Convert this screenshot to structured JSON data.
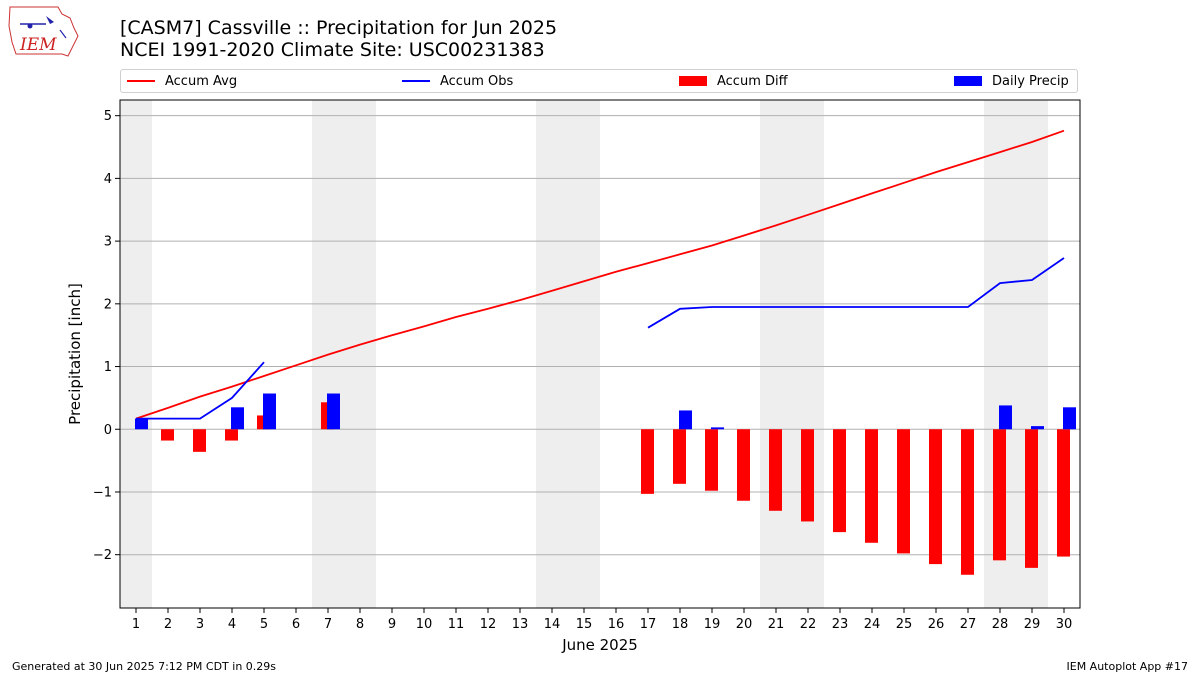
{
  "header": {
    "title_line1": "[CASM7] Cassville :: Precipitation for Jun 2025",
    "title_line2": "NCEI 1991-2020 Climate Site: USC00231383",
    "logo_text": "IEM"
  },
  "legend": {
    "items": [
      {
        "label": "Accum Avg",
        "kind": "line",
        "color": "#ff0000"
      },
      {
        "label": "Accum Obs",
        "kind": "line",
        "color": "#0000ff"
      },
      {
        "label": "Accum Diff",
        "kind": "patch",
        "color": "#ff0000"
      },
      {
        "label": "Daily Precip",
        "kind": "patch",
        "color": "#0000ff"
      }
    ]
  },
  "footer": {
    "left": "Generated at 30 Jun 2025 7:12 PM CDT in 0.29s",
    "right": "IEM Autoplot App #17"
  },
  "chart_data": {
    "type": "bar",
    "xlabel": "June 2025",
    "ylabel": "Precipitation [inch]",
    "categories": [
      "1",
      "2",
      "3",
      "4",
      "5",
      "6",
      "7",
      "8",
      "9",
      "10",
      "11",
      "12",
      "13",
      "14",
      "15",
      "16",
      "17",
      "18",
      "19",
      "20",
      "21",
      "22",
      "23",
      "24",
      "25",
      "26",
      "27",
      "28",
      "29",
      "30"
    ],
    "xlim": [
      0.5,
      30.5
    ],
    "ylim": [
      -2.85,
      5.25
    ],
    "yticks": [
      -2,
      -1,
      0,
      1,
      2,
      3,
      4,
      5
    ],
    "ytick_labels": [
      "−2",
      "−1",
      "0",
      "1",
      "2",
      "3",
      "4",
      "5"
    ],
    "grid": true,
    "weekend_days": [
      1,
      7,
      8,
      14,
      15,
      21,
      22,
      28,
      29
    ],
    "weekend_color": "#eeeeee",
    "series": [
      {
        "name": "Accum Avg",
        "kind": "line",
        "color": "#ff0000",
        "values": [
          0.17,
          0.34,
          0.52,
          0.68,
          0.85,
          1.02,
          1.19,
          1.35,
          1.5,
          1.64,
          1.79,
          1.92,
          2.06,
          2.21,
          2.36,
          2.51,
          2.65,
          2.79,
          2.93,
          3.09,
          3.25,
          3.42,
          3.59,
          3.76,
          3.93,
          4.1,
          4.26,
          4.42,
          4.58,
          4.76
        ]
      },
      {
        "name": "Accum Obs",
        "kind": "line",
        "color": "#0000ff",
        "values": [
          0.17,
          0.17,
          0.17,
          0.5,
          1.07,
          null,
          null,
          null,
          null,
          null,
          null,
          null,
          null,
          null,
          null,
          null,
          1.62,
          1.92,
          1.95,
          1.95,
          1.95,
          1.95,
          1.95,
          1.95,
          1.95,
          1.95,
          1.95,
          2.33,
          2.38,
          2.73
        ]
      },
      {
        "name": "Accum Diff",
        "kind": "bar",
        "color": "#ff0000",
        "values": [
          0.0,
          -0.18,
          -0.36,
          -0.18,
          0.22,
          null,
          0.43,
          null,
          null,
          null,
          null,
          null,
          null,
          null,
          null,
          null,
          -1.03,
          -0.87,
          -0.98,
          -1.14,
          -1.3,
          -1.47,
          -1.64,
          -1.81,
          -1.98,
          -2.15,
          -2.32,
          -2.09,
          -2.21,
          -2.03
        ]
      },
      {
        "name": "Daily Precip",
        "kind": "bar",
        "color": "#0000ff",
        "values": [
          0.17,
          0.0,
          0.0,
          0.35,
          0.57,
          null,
          0.57,
          null,
          null,
          null,
          null,
          null,
          null,
          null,
          null,
          null,
          0.0,
          0.3,
          0.03,
          0.0,
          0.0,
          0.0,
          0.0,
          0.0,
          0.0,
          0.0,
          0.0,
          0.38,
          0.05,
          0.35
        ]
      }
    ]
  }
}
